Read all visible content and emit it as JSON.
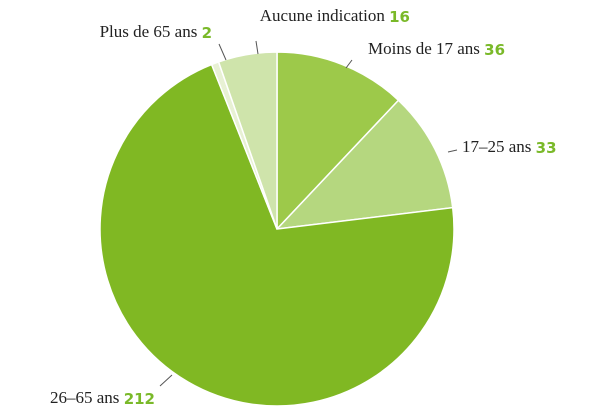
{
  "chart_data": {
    "type": "pie",
    "categories": [
      "Moins de 17 ans",
      "17–25 ans",
      "26–65 ans",
      "Plus de 65 ans",
      "Aucune indication"
    ],
    "values": [
      36,
      33,
      212,
      2,
      16
    ],
    "colors": [
      "#9dc94a",
      "#b5d77f",
      "#80b823",
      "#e8f1d4",
      "#cfe4ab"
    ],
    "value_label_color": "#7ab929",
    "start_angle": 0,
    "direction": "clockwise"
  }
}
